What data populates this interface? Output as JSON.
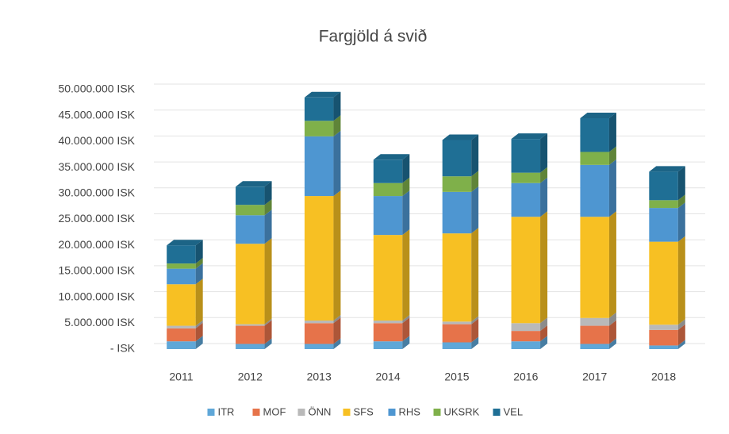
{
  "chart_data": {
    "type": "bar",
    "stacked": true,
    "title": "Fargjöld á svið",
    "categories": [
      "2011",
      "2012",
      "2013",
      "2014",
      "2015",
      "2016",
      "2017",
      "2018"
    ],
    "series": [
      {
        "name": "ITR",
        "color": "#5fa7d8",
        "values": [
          1500000,
          1000000,
          1000000,
          1500000,
          1300000,
          1500000,
          1000000,
          700000
        ]
      },
      {
        "name": "MOF",
        "color": "#e6734a",
        "values": [
          2500000,
          3500000,
          4000000,
          3500000,
          3500000,
          2000000,
          3500000,
          3000000
        ]
      },
      {
        "name": "ÖNN",
        "color": "#b9b9b9",
        "values": [
          500000,
          300000,
          500000,
          500000,
          500000,
          1500000,
          1500000,
          1000000
        ]
      },
      {
        "name": "SFS",
        "color": "#f7c023",
        "values": [
          8000000,
          15500000,
          24000000,
          16500000,
          17000000,
          20500000,
          19500000,
          16000000
        ]
      },
      {
        "name": "RHS",
        "color": "#4e96d1",
        "values": [
          3000000,
          5500000,
          11500000,
          7500000,
          8000000,
          6500000,
          10000000,
          6500000
        ]
      },
      {
        "name": "UKSRK",
        "color": "#7fb04a",
        "values": [
          1000000,
          2000000,
          3000000,
          2500000,
          3000000,
          2000000,
          2500000,
          1500000
        ]
      },
      {
        "name": "VEL",
        "color": "#1f6f95",
        "values": [
          3500000,
          3500000,
          4500000,
          4500000,
          7000000,
          6500000,
          6500000,
          5500000
        ]
      }
    ],
    "ylim": [
      0,
      50000000
    ],
    "yticks": [
      {
        "value": 0,
        "label": "-   ISK"
      },
      {
        "value": 5000000,
        "label": "5.000.000 ISK"
      },
      {
        "value": 10000000,
        "label": "10.000.000 ISK"
      },
      {
        "value": 15000000,
        "label": "15.000.000 ISK"
      },
      {
        "value": 20000000,
        "label": "20.000.000 ISK"
      },
      {
        "value": 25000000,
        "label": "25.000.000 ISK"
      },
      {
        "value": 30000000,
        "label": "30.000.000 ISK"
      },
      {
        "value": 35000000,
        "label": "35.000.000 ISK"
      },
      {
        "value": 40000000,
        "label": "40.000.000 ISK"
      },
      {
        "value": 45000000,
        "label": "45.000.000 ISK"
      },
      {
        "value": 50000000,
        "label": "50.000.000 ISK"
      }
    ],
    "grid": true,
    "legend": "bottom"
  }
}
